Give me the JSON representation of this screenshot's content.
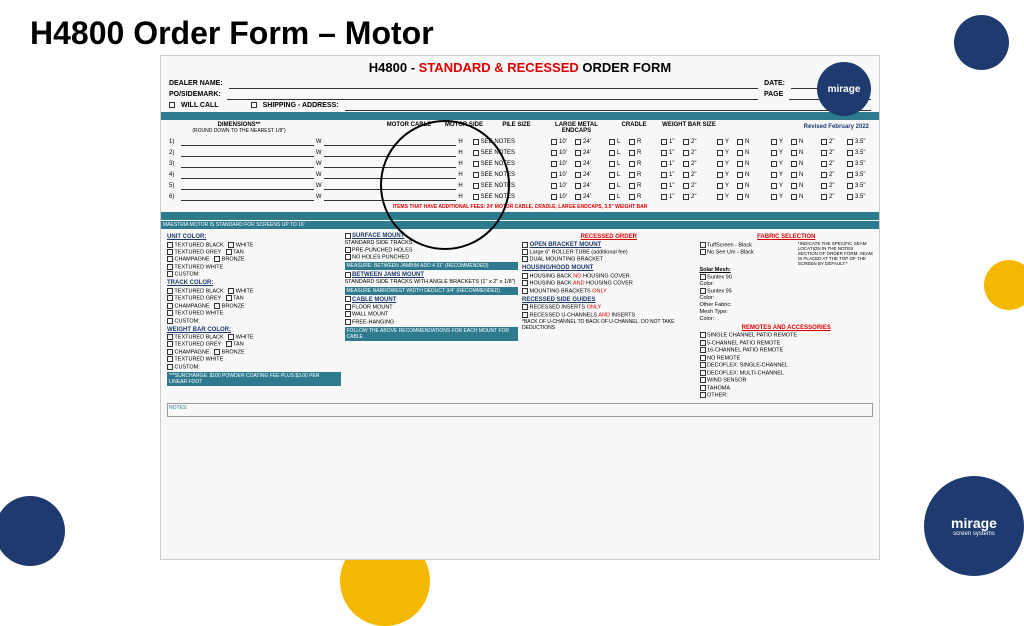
{
  "slide": {
    "title": "H4800 Order Form – Motor"
  },
  "form": {
    "header_prefix": "H4800  -  ",
    "header_red": "STANDARD & RECESSED",
    "header_suffix": " ORDER FORM",
    "logo": "mirage",
    "revised": "Revised February 2022",
    "dealer_labels": {
      "dealer": "DEALER NAME:",
      "date": "DATE:",
      "po": "PO/SIDEMARK:",
      "page": "PAGE",
      "of": "OF",
      "willcall": "WILL CALL",
      "shipping": "SHIPPING - ADDRESS:"
    },
    "dim_headers": [
      "DIMENSIONS**",
      "MOTOR CABLE",
      "MOTOR SIDE",
      "PILE SIZE",
      "LARGE METAL ENDCAPS",
      "CRADLE",
      "WEIGHT BAR SIZE"
    ],
    "dim_sub": "(ROUND DOWN TO THE NEAREST 1/8\")",
    "row_nums": [
      "1)",
      "2)",
      "3)",
      "4)",
      "5)",
      "6)"
    ],
    "wh": "W",
    "h": "H",
    "seenotes": "SEE NOTES",
    "cable_opts": [
      "10'",
      "24'"
    ],
    "side_opts": [
      "L",
      "R"
    ],
    "pile_opts": [
      "1\"",
      "2\""
    ],
    "yn_opts": [
      "Y",
      "N"
    ],
    "wb_opts": [
      "2\"",
      "3.5\""
    ],
    "red_note": "ITEMS THAT HAVE ADDITIONAL FEES: 24' MOTOR CABLE, CRADLE, LARGE ENDCAPS, 3.5\" WEIGHT BAR",
    "teal_note": "MAESTRIA MOTOR IS STANDARD FOR SCREENS UP TO 16'",
    "unit_color": {
      "title": "UNIT COLOR:",
      "opts": [
        "TEXTURED BLACK",
        "WHITE",
        "TEXTURED GREY",
        "TAN",
        "CHAMPAGNE",
        "BRONZE",
        "TEXTURED WHITE"
      ],
      "custom": "CUSTOM:"
    },
    "track_color": {
      "title": "TRACK COLOR:",
      "opts": [
        "TEXTURED BLACK",
        "WHITE",
        "TEXTURED GREY",
        "TAN",
        "CHAMPAGNE",
        "BRONZE",
        "TEXTURED WHITE"
      ],
      "custom": "CUSTOM:"
    },
    "wb_color": {
      "title": "WEIGHT BAR COLOR:",
      "opts": [
        "TEXTURED BLACK",
        "WHITE",
        "TEXTURED GREY",
        "TAN",
        "CHAMPAGNE",
        "BRONZE",
        "TEXTURED WHITE"
      ],
      "custom": "CUSTOM:"
    },
    "surcharge": "***SURCHARGE: $100 POWDER COATING FEE PLUS $3.00 PER LINEAR FOOT",
    "surface_mount": {
      "title": "SURFACE MOUNT",
      "sub": "STANDARD SIDE TRACKS",
      "opts": [
        "PRE-PUNCHED HOLES",
        "NO HOLES PUNCHED"
      ],
      "teal": "MEASURE: BETWEEN JAMBIM ADD 4 31\" (RECOMMENDED)"
    },
    "between_jams": {
      "title": "BETWEEN JAMS MOUNT",
      "sub": "STANDARD SIDE TRACKS WITH ANGLE BRACKETS (1\" x 2\" x 1/8\")",
      "teal": "MEASURE NARROWEST WIDTH DEDUCT 3/4\" (RECOMMENDED)"
    },
    "cable_mount": {
      "title": "CABLE MOUNT",
      "opts": [
        "FLOOR MOUNT",
        "WALL MOUNT",
        "FREE-HANGING"
      ],
      "teal": "FOLLOW THE ABOVE RECOMMENDATIONS FOR EACH MOUNT FOR CABLE"
    },
    "recessed": {
      "title": "RECESSED ORDER",
      "open_bracket": "OPEN BRACKET MOUNT",
      "opts1": [
        "Large 6\" ROLLER TUBE (additional fee)",
        "DUAL MOUNTING BRACKET"
      ],
      "housing_title": "HOUSING/HOOD MOUNT",
      "housing_opts_1a": "HOUSING BACK ",
      "housing_opts_1b": "NO",
      "housing_opts_1c": " HOUSING COVER",
      "housing_opts_2a": "HOUSING BACK ",
      "housing_opts_2b": "AND",
      "housing_opts_2c": " HOUSING COVER",
      "housing_opts_3a": "MOUNTING BRACKETS ",
      "housing_opts_3b": "ONLY",
      "side_guides": "RECESSED SIDE GUIDES",
      "sg1a": "RECESSED INSERTS ",
      "sg1b": "ONLY",
      "sg2a": "RECESSED U-CHANNELS ",
      "sg2b": "AND",
      "sg2c": " INSERTS",
      "back_note": "*BACK OF U-CHANNEL TO BACK OF U-CHANNEL. DO NOT TAKE DEDUCTIONS"
    },
    "fabric": {
      "title": "FABRIC SELECTION",
      "opts": [
        "TuffScreen - Black",
        "No See Um - Black"
      ],
      "note": "*INDICATE THE SPECIFIC SEAM LOCATION IN THE NOTES SECTION OF ORDER FORM. SEAM IS PLACED AT THE TOP OF THE SCREEN BY DEFAULT.*",
      "solar": "Solar Mesh:",
      "s90": "Suntex 90",
      "s95": "Suntex 95",
      "color": "Color:",
      "other": "Other Fabric:",
      "mesh": "Mesh Type:"
    },
    "remotes": {
      "title": "REMOTES AND ACCESSORIES",
      "opts": [
        "SINGLE CHANNEL PATIO REMOTE",
        "5-CHANNEL PATIO REMOTE",
        "16-CHANNEL PATIO REMOTE",
        "NO REMOTE",
        "DECOFLEX: SINGLE-CHANNEL",
        "DECOFLEX: MULTI-CHANNEL",
        "WIND SENSOR",
        "TAHOMA",
        "OTHER:"
      ]
    },
    "notes_label": "NOTES:"
  },
  "logo2": {
    "name": "mirage",
    "sub": "screen systems"
  }
}
